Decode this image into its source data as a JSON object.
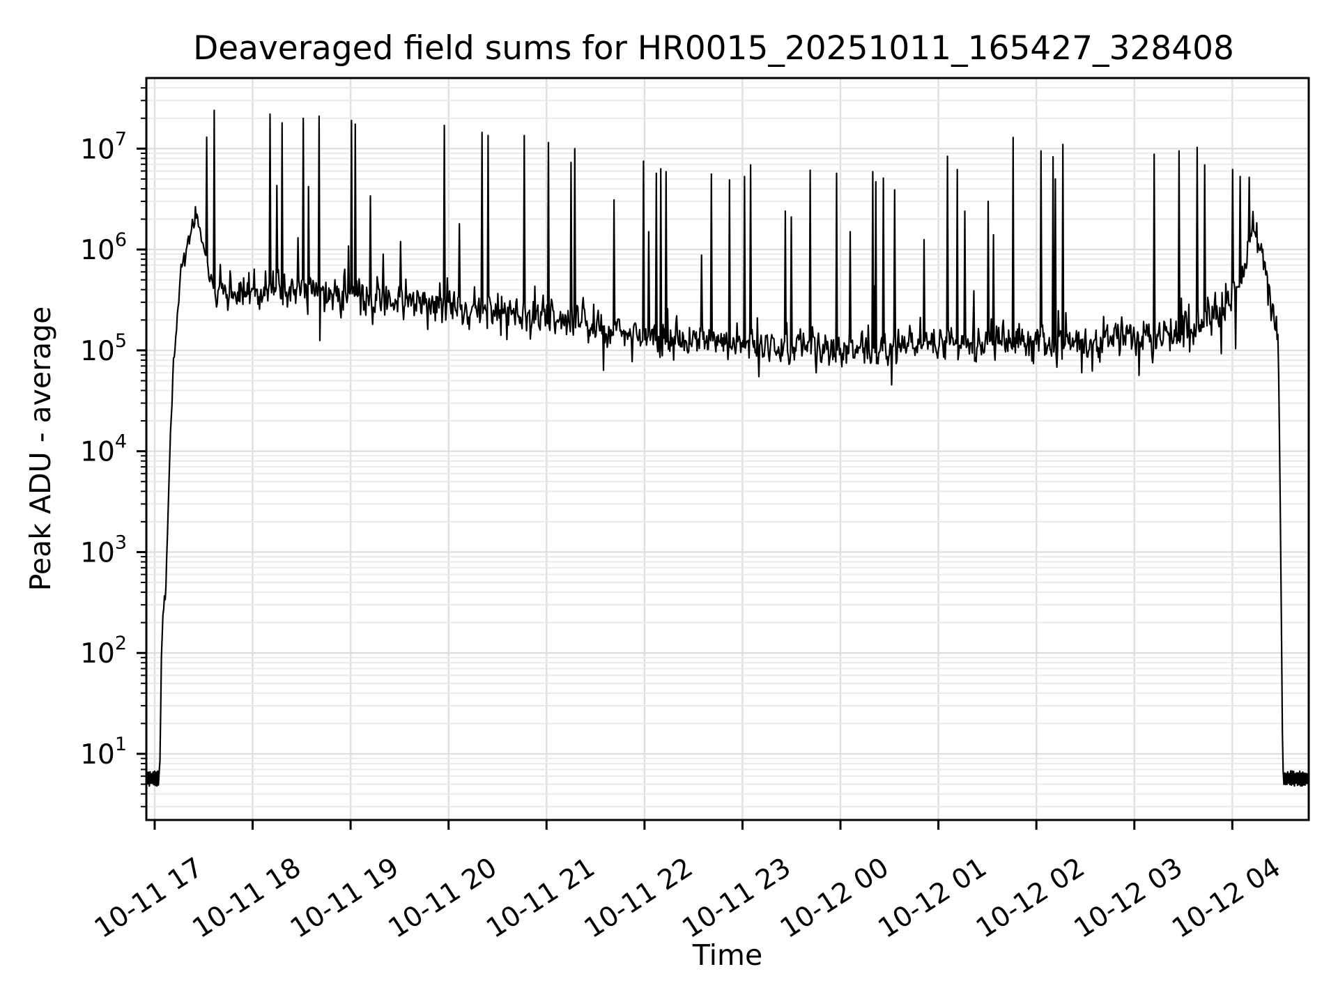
{
  "title": "Deaveraged field sums for HR0015_20251011_165427_328408",
  "axes": {
    "xlabel": "Time",
    "ylabel": "Peak ADU - average",
    "x_tick_labels": [
      "10-11 17",
      "10-11 18",
      "10-11 19",
      "10-11 20",
      "10-11 21",
      "10-11 22",
      "10-11 23",
      "10-12 00",
      "10-12 01",
      "10-12 02",
      "10-12 03",
      "10-12 04"
    ],
    "x_tick_hours": [
      0,
      1,
      2,
      3,
      4,
      5,
      6,
      7,
      8,
      9,
      10,
      11
    ],
    "y_tick_exponents": [
      1,
      2,
      3,
      4,
      5,
      6,
      7
    ],
    "y_tick_base": "10"
  },
  "colors": {
    "line": "#000000",
    "grid_major": "#dfdfdf",
    "grid_minor": "#eaeaea",
    "spine": "#000000",
    "background": "#ffffff"
  },
  "chart_data": {
    "type": "line",
    "title": "Deaveraged field sums for HR0015_20251011_165427_328408",
    "xlabel": "Time",
    "ylabel": "Peak ADU - average",
    "x_unit": "hours after 2025-10-11 17:00",
    "x_range": [
      -0.085,
      11.78
    ],
    "y_log_range": [
      0.344,
      7.7
    ],
    "y_scale": "log",
    "grid": "major+minor",
    "baseline_value": 5.5,
    "sample_step_hours": 0.0077,
    "noise_sigma_log10": 0.085,
    "seed": 328408,
    "envelope_log10": [
      [
        -0.085,
        0.74
      ],
      [
        0.05,
        0.74
      ],
      [
        0.056,
        1.1
      ],
      [
        0.07,
        2.0
      ],
      [
        0.09,
        2.5
      ],
      [
        0.112,
        2.58
      ],
      [
        0.13,
        3.2
      ],
      [
        0.16,
        4.1
      ],
      [
        0.19,
        4.8
      ],
      [
        0.23,
        5.4
      ],
      [
        0.28,
        5.85
      ],
      [
        0.33,
        6.05
      ],
      [
        0.38,
        6.2
      ],
      [
        0.42,
        6.3
      ],
      [
        0.46,
        6.22
      ],
      [
        0.5,
        6.02
      ],
      [
        0.55,
        5.78
      ],
      [
        0.6,
        5.6
      ],
      [
        0.63,
        5.5
      ],
      [
        0.7,
        5.55
      ],
      [
        1.2,
        5.58
      ],
      [
        1.8,
        5.57
      ],
      [
        2.3,
        5.54
      ],
      [
        2.9,
        5.49
      ],
      [
        3.5,
        5.4
      ],
      [
        4.1,
        5.3
      ],
      [
        4.7,
        5.2
      ],
      [
        5.3,
        5.11
      ],
      [
        5.9,
        5.05
      ],
      [
        6.5,
        5.01
      ],
      [
        7.1,
        5.0
      ],
      [
        7.7,
        5.04
      ],
      [
        8.3,
        5.07
      ],
      [
        8.9,
        5.1
      ],
      [
        9.5,
        5.11
      ],
      [
        10.0,
        5.12
      ],
      [
        10.4,
        5.14
      ],
      [
        10.7,
        5.22
      ],
      [
        10.95,
        5.4
      ],
      [
        11.1,
        5.78
      ],
      [
        11.22,
        6.15
      ],
      [
        11.3,
        5.95
      ],
      [
        11.38,
        5.55
      ],
      [
        11.44,
        5.22
      ],
      [
        11.47,
        5.05
      ],
      [
        11.5,
        2.5
      ],
      [
        11.515,
        0.74
      ],
      [
        11.78,
        0.74
      ]
    ],
    "spikes": [
      [
        0.53,
        13000000.0
      ],
      [
        0.61,
        24000000.0
      ],
      [
        1.18,
        22000000.0
      ],
      [
        1.25,
        4300000.0
      ],
      [
        1.3,
        18000000.0
      ],
      [
        1.52,
        20000000.0
      ],
      [
        1.57,
        4200000.0
      ],
      [
        1.68,
        21000000.0
      ],
      [
        2.01,
        19000000.0
      ],
      [
        2.05,
        17500000.0
      ],
      [
        2.2,
        3400000.0
      ],
      [
        2.33,
        900000.0
      ],
      [
        2.51,
        1200000.0
      ],
      [
        2.96,
        17000000.0
      ],
      [
        3.11,
        1800000.0
      ],
      [
        3.34,
        14500000.0
      ],
      [
        3.4,
        13500000.0
      ],
      [
        3.77,
        13500000.0
      ],
      [
        4.02,
        11500000.0
      ],
      [
        4.25,
        7300000.0
      ],
      [
        4.29,
        10000000.0
      ],
      [
        4.69,
        3100000.0
      ],
      [
        4.99,
        7500000.0
      ],
      [
        5.04,
        1500000.0
      ],
      [
        5.12,
        5700000.0
      ],
      [
        5.17,
        6300000.0
      ],
      [
        5.22,
        5900000.0
      ],
      [
        5.58,
        880000.0
      ],
      [
        5.68,
        5600000.0
      ],
      [
        5.87,
        4900000.0
      ],
      [
        6.02,
        5300000.0
      ],
      [
        6.08,
        6900000.0
      ],
      [
        6.44,
        2400000.0
      ],
      [
        6.5,
        2100000.0
      ],
      [
        6.69,
        6100000.0
      ],
      [
        6.96,
        5700000.0
      ],
      [
        7.1,
        1500000.0
      ],
      [
        7.33,
        5900000.0
      ],
      [
        7.36,
        4700000.0
      ],
      [
        7.44,
        5100000.0
      ],
      [
        7.55,
        3900000.0
      ],
      [
        7.85,
        1250000.0
      ],
      [
        8.09,
        8400000.0
      ],
      [
        8.19,
        6200000.0
      ],
      [
        8.27,
        2400000.0
      ],
      [
        8.51,
        3000000.0
      ],
      [
        8.56,
        1400000.0
      ],
      [
        8.76,
        12900000.0
      ],
      [
        9.05,
        9500000.0
      ],
      [
        9.17,
        8300000.0
      ],
      [
        9.19,
        5000000.0
      ],
      [
        9.27,
        11000000.0
      ],
      [
        10.2,
        8800000.0
      ],
      [
        10.46,
        9500000.0
      ],
      [
        10.64,
        10300000.0
      ],
      [
        10.72,
        6900000.0
      ],
      [
        11.0,
        6200000.0
      ],
      [
        11.08,
        5300000.0
      ],
      [
        11.17,
        5200000.0
      ]
    ]
  }
}
